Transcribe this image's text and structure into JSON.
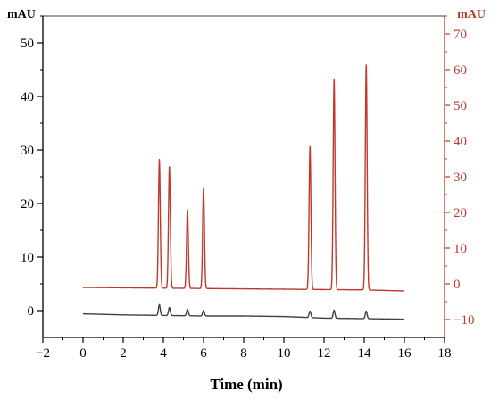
{
  "chart_data": {
    "type": "line",
    "title": "",
    "xlabel": "Time (min)",
    "ylabel_left": "mAU",
    "ylabel_right": "mAU",
    "xlim": [
      -2,
      18
    ],
    "ylim_left": [
      -5,
      55
    ],
    "ylim_right": [
      -15,
      75
    ],
    "x_ticks": [
      -2,
      0,
      2,
      4,
      6,
      8,
      10,
      12,
      14,
      16,
      18
    ],
    "x_tick_labels": [
      "−2",
      "0",
      "2",
      "4",
      "6",
      "8",
      "10",
      "12",
      "14",
      "16",
      "18"
    ],
    "y_left_ticks": [
      0,
      10,
      20,
      30,
      40,
      50
    ],
    "y_left_tick_labels": [
      "0",
      "10",
      "20",
      "30",
      "40",
      "50"
    ],
    "y_right_ticks": [
      -10,
      0,
      10,
      20,
      30,
      40,
      50,
      60,
      70
    ],
    "y_right_tick_labels": [
      "−10",
      "0",
      "10",
      "20",
      "30",
      "40",
      "50",
      "60",
      "70"
    ],
    "grid": false,
    "legend": "none",
    "colors": {
      "left_axis": "#000000",
      "right_axis": "#c0392b"
    },
    "series": [
      {
        "axis": "right",
        "color": "#c0392b",
        "x_range": [
          0,
          16
        ],
        "baseline": [
          [
            0,
            -1.0
          ],
          [
            2,
            -1.1
          ],
          [
            4,
            -1.2
          ],
          [
            6,
            -1.3
          ],
          [
            8,
            -1.4
          ],
          [
            10,
            -1.5
          ],
          [
            12,
            -1.6
          ],
          [
            14,
            -1.7
          ],
          [
            16,
            -2.0
          ]
        ],
        "peaks": [
          {
            "t": 3.8,
            "height": 36
          },
          {
            "t": 4.3,
            "height": 34
          },
          {
            "t": 5.2,
            "height": 22
          },
          {
            "t": 6.0,
            "height": 28
          },
          {
            "t": 11.3,
            "height": 40
          },
          {
            "t": 12.5,
            "height": 59
          },
          {
            "t": 14.1,
            "height": 63
          }
        ]
      },
      {
        "axis": "left",
        "color": "#404040",
        "x_range": [
          0,
          16
        ],
        "baseline": [
          [
            0,
            -0.6
          ],
          [
            2,
            -0.8
          ],
          [
            4,
            -0.9
          ],
          [
            6,
            -1.0
          ],
          [
            8,
            -1.0
          ],
          [
            10,
            -1.1
          ],
          [
            12,
            -1.4
          ],
          [
            14,
            -1.5
          ],
          [
            16,
            -1.6
          ]
        ],
        "peaks": [
          {
            "t": 3.8,
            "height": 2.0
          },
          {
            "t": 4.3,
            "height": 1.5
          },
          {
            "t": 5.2,
            "height": 1.2
          },
          {
            "t": 6.0,
            "height": 1.0
          },
          {
            "t": 11.3,
            "height": 1.2
          },
          {
            "t": 12.5,
            "height": 1.5
          },
          {
            "t": 14.1,
            "height": 1.4
          }
        ]
      }
    ]
  }
}
